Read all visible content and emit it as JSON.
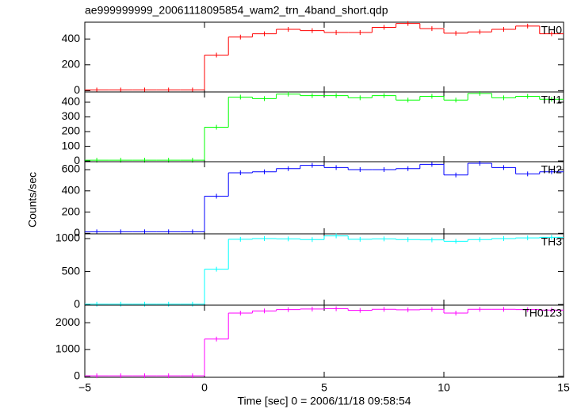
{
  "chart_data": {
    "type": "step",
    "title": "ae999999999_20061118095854_wam2_trn_4band_short.qdp",
    "xlabel": "Time [sec] 0 = 2006/11/18 09:58:54",
    "ylabel": "Counts/sec",
    "xlim": [
      -5,
      15
    ],
    "xticks": [
      {
        "value": -5,
        "label": "−5"
      },
      0,
      5,
      10,
      15
    ],
    "bins": [
      -5,
      -4,
      -3,
      -2,
      -1,
      0,
      1,
      2,
      3,
      4,
      5,
      6,
      7,
      8,
      9,
      10,
      11,
      12,
      13,
      14,
      15
    ],
    "panels": [
      {
        "name": "TH0",
        "color": "#ff0000",
        "ylim": [
          -10,
          530
        ],
        "yticks": [
          0,
          200,
          400
        ],
        "values": [
          5,
          5,
          5,
          5,
          5,
          275,
          415,
          440,
          475,
          465,
          450,
          450,
          490,
          520,
          480,
          445,
          455,
          475,
          500,
          440
        ]
      },
      {
        "name": "TH1",
        "color": "#00ff00",
        "ylim": [
          -5,
          470
        ],
        "yticks": [
          0,
          100,
          200,
          300,
          400
        ],
        "values": [
          5,
          5,
          5,
          5,
          5,
          230,
          435,
          425,
          455,
          445,
          445,
          430,
          445,
          415,
          440,
          415,
          460,
          430,
          440,
          420
        ]
      },
      {
        "name": "TH2",
        "color": "#0000ff",
        "ylim": [
          -5,
          675
        ],
        "yticks": [
          0,
          200,
          400,
          600
        ],
        "values": [
          15,
          15,
          15,
          15,
          15,
          350,
          570,
          580,
          610,
          640,
          620,
          600,
          600,
          610,
          650,
          550,
          660,
          620,
          560,
          580
        ]
      },
      {
        "name": "TH3",
        "color": "#00ffff",
        "ylim": [
          -10,
          1072
        ],
        "yticks": [
          0,
          500,
          1000
        ],
        "values": [
          5,
          5,
          5,
          5,
          5,
          535,
          990,
          1000,
          995,
          985,
          1040,
          990,
          995,
          985,
          980,
          960,
          985,
          1000,
          1010,
          1020
        ]
      },
      {
        "name": "TH0123",
        "color": "#ff00ff",
        "ylim": [
          -40,
          2655
        ],
        "yticks": [
          0,
          1000,
          2000
        ],
        "values": [
          15,
          15,
          15,
          15,
          15,
          1390,
          2360,
          2440,
          2490,
          2510,
          2520,
          2460,
          2500,
          2480,
          2500,
          2360,
          2500,
          2500,
          2490,
          2470
        ]
      }
    ]
  }
}
